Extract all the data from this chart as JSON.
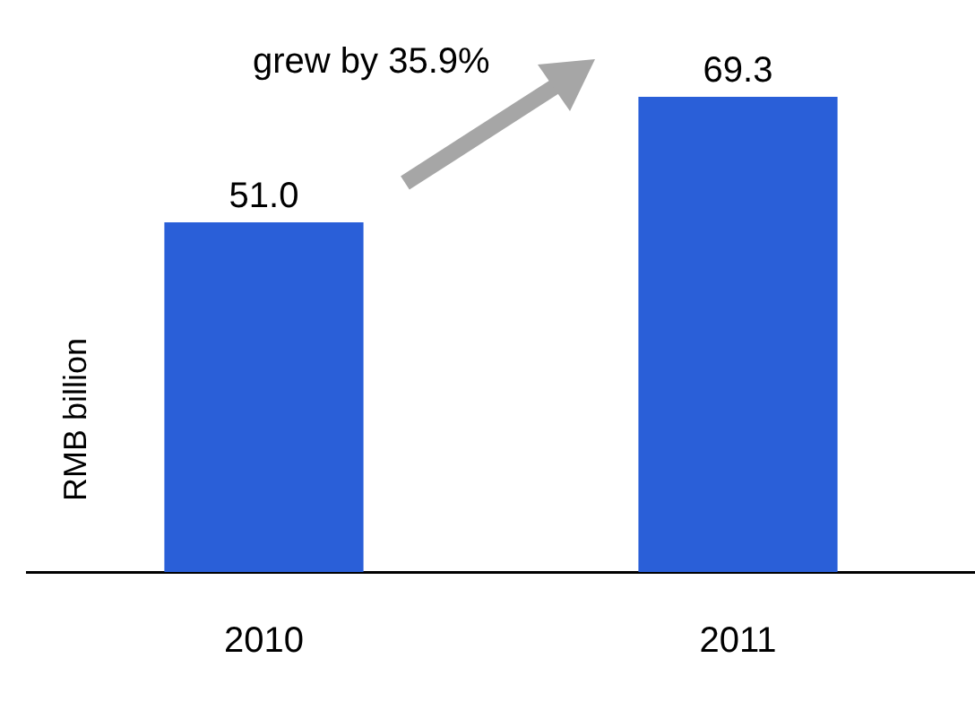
{
  "chart_data": {
    "type": "bar",
    "categories": [
      "2010",
      "2011"
    ],
    "values": [
      51.0,
      69.3
    ],
    "color": "#2a5fd8",
    "ylabel": "RMB billion",
    "data_labels": true,
    "value_labels": [
      "51.0",
      "69.3"
    ],
    "annotations": [
      "grew by 35.9%"
    ]
  }
}
